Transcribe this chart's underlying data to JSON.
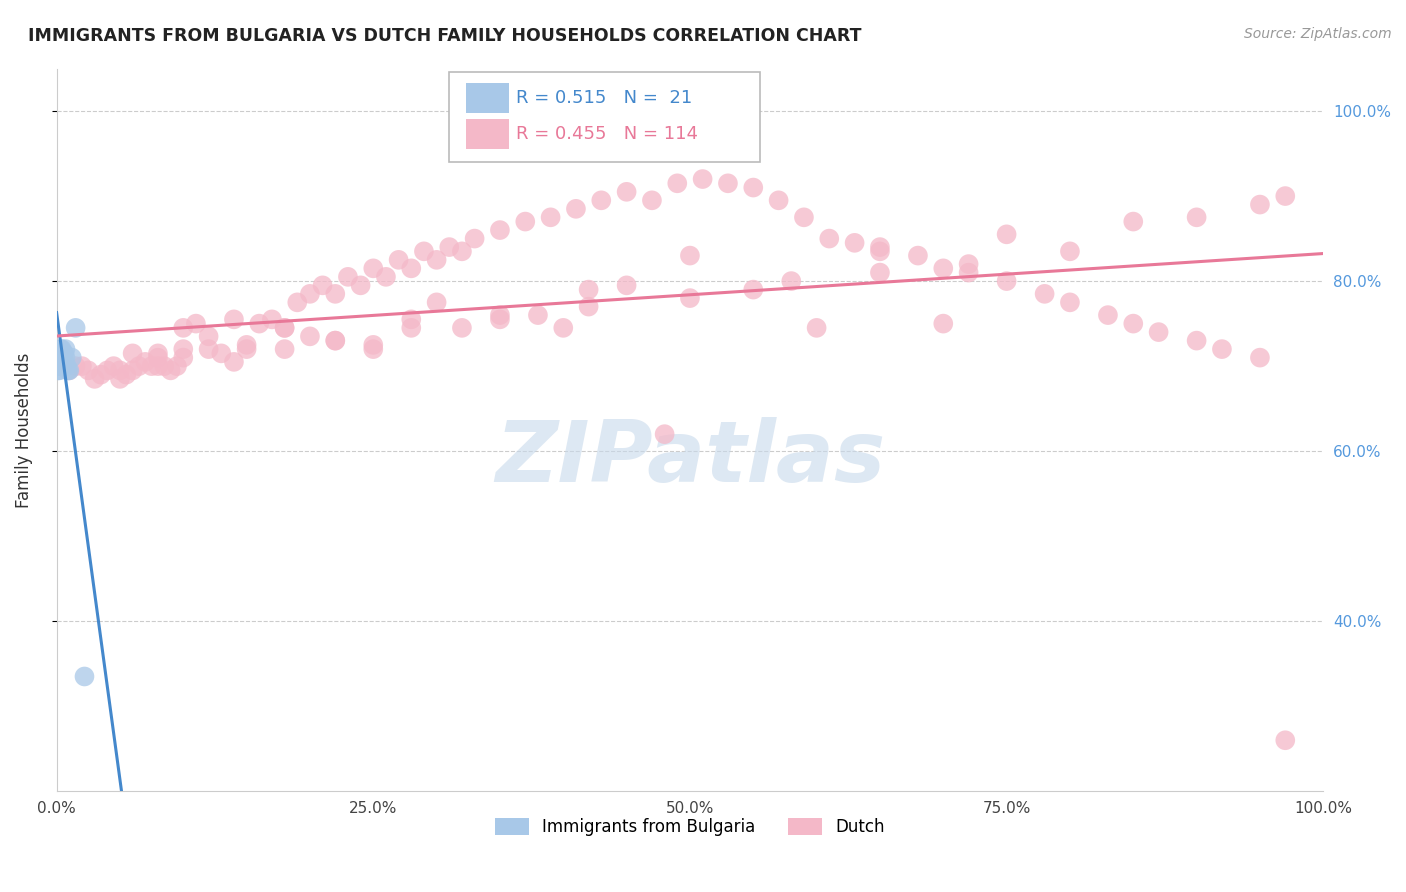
{
  "title": "IMMIGRANTS FROM BULGARIA VS DUTCH FAMILY HOUSEHOLDS CORRELATION CHART",
  "source": "Source: ZipAtlas.com",
  "ylabel": "Family Households",
  "blue_R": 0.515,
  "blue_N": 21,
  "pink_R": 0.455,
  "pink_N": 114,
  "blue_color": "#a8c8e8",
  "pink_color": "#f4b8c8",
  "blue_line_color": "#4488cc",
  "pink_line_color": "#e87898",
  "watermark": "ZIPatlas",
  "watermark_color_r": 0.78,
  "watermark_color_g": 0.85,
  "watermark_color_b": 0.92,
  "background_color": "#ffffff",
  "grid_color": "#cccccc",
  "blue_x": [
    0.001,
    0.002,
    0.002,
    0.003,
    0.003,
    0.003,
    0.004,
    0.004,
    0.004,
    0.005,
    0.005,
    0.006,
    0.006,
    0.007,
    0.007,
    0.008,
    0.009,
    0.01,
    0.012,
    0.015,
    0.022
  ],
  "blue_y": [
    0.695,
    0.695,
    0.71,
    0.7,
    0.715,
    0.72,
    0.7,
    0.71,
    0.72,
    0.7,
    0.71,
    0.705,
    0.715,
    0.71,
    0.72,
    0.7,
    0.695,
    0.695,
    0.71,
    0.745,
    0.335
  ],
  "pink_x": [
    0.01,
    0.015,
    0.02,
    0.025,
    0.03,
    0.035,
    0.04,
    0.045,
    0.05,
    0.055,
    0.06,
    0.065,
    0.07,
    0.075,
    0.08,
    0.085,
    0.09,
    0.095,
    0.1,
    0.11,
    0.12,
    0.13,
    0.14,
    0.15,
    0.16,
    0.17,
    0.18,
    0.19,
    0.2,
    0.21,
    0.22,
    0.23,
    0.24,
    0.25,
    0.26,
    0.27,
    0.28,
    0.29,
    0.3,
    0.31,
    0.32,
    0.33,
    0.35,
    0.37,
    0.39,
    0.41,
    0.43,
    0.45,
    0.47,
    0.49,
    0.51,
    0.53,
    0.55,
    0.57,
    0.59,
    0.61,
    0.63,
    0.65,
    0.68,
    0.7,
    0.72,
    0.75,
    0.78,
    0.8,
    0.83,
    0.85,
    0.87,
    0.9,
    0.92,
    0.95,
    0.97,
    0.05,
    0.08,
    0.12,
    0.18,
    0.22,
    0.28,
    0.35,
    0.42,
    0.5,
    0.58,
    0.65,
    0.72,
    0.8,
    0.48,
    0.32,
    0.25,
    0.15,
    0.1,
    0.4,
    0.6,
    0.7,
    0.55,
    0.45,
    0.35,
    0.25,
    0.2,
    0.3,
    0.5,
    0.65,
    0.75,
    0.85,
    0.9,
    0.95,
    0.42,
    0.38,
    0.28,
    0.22,
    0.18,
    0.14,
    0.1,
    0.08,
    0.06,
    0.97
  ],
  "pink_y": [
    0.695,
    0.7,
    0.7,
    0.695,
    0.685,
    0.69,
    0.695,
    0.7,
    0.695,
    0.69,
    0.715,
    0.7,
    0.705,
    0.7,
    0.71,
    0.7,
    0.695,
    0.7,
    0.745,
    0.75,
    0.735,
    0.715,
    0.755,
    0.725,
    0.75,
    0.755,
    0.745,
    0.775,
    0.785,
    0.795,
    0.785,
    0.805,
    0.795,
    0.815,
    0.805,
    0.825,
    0.815,
    0.835,
    0.825,
    0.84,
    0.835,
    0.85,
    0.86,
    0.87,
    0.875,
    0.885,
    0.895,
    0.905,
    0.895,
    0.915,
    0.92,
    0.915,
    0.91,
    0.895,
    0.875,
    0.85,
    0.845,
    0.835,
    0.83,
    0.815,
    0.81,
    0.8,
    0.785,
    0.775,
    0.76,
    0.75,
    0.74,
    0.73,
    0.72,
    0.71,
    0.9,
    0.685,
    0.715,
    0.72,
    0.745,
    0.73,
    0.755,
    0.76,
    0.77,
    0.78,
    0.8,
    0.81,
    0.82,
    0.835,
    0.62,
    0.745,
    0.72,
    0.72,
    0.72,
    0.745,
    0.745,
    0.75,
    0.79,
    0.795,
    0.755,
    0.725,
    0.735,
    0.775,
    0.83,
    0.84,
    0.855,
    0.87,
    0.875,
    0.89,
    0.79,
    0.76,
    0.745,
    0.73,
    0.72,
    0.705,
    0.71,
    0.7,
    0.695,
    0.26
  ],
  "xlim": [
    0,
    1.0
  ],
  "ylim": [
    0.2,
    1.05
  ],
  "yticks": [
    0.4,
    0.6,
    0.8,
    1.0
  ],
  "ytick_labels": [
    "40.0%",
    "60.0%",
    "80.0%",
    "100.0%"
  ],
  "xticks": [
    0.0,
    0.25,
    0.5,
    0.75,
    1.0
  ],
  "xtick_labels": [
    "0.0%",
    "25.0%",
    "50.0%",
    "75.0%",
    "100.0%"
  ],
  "legend_blue_label": "Immigrants from Bulgaria",
  "legend_pink_label": "Dutch"
}
